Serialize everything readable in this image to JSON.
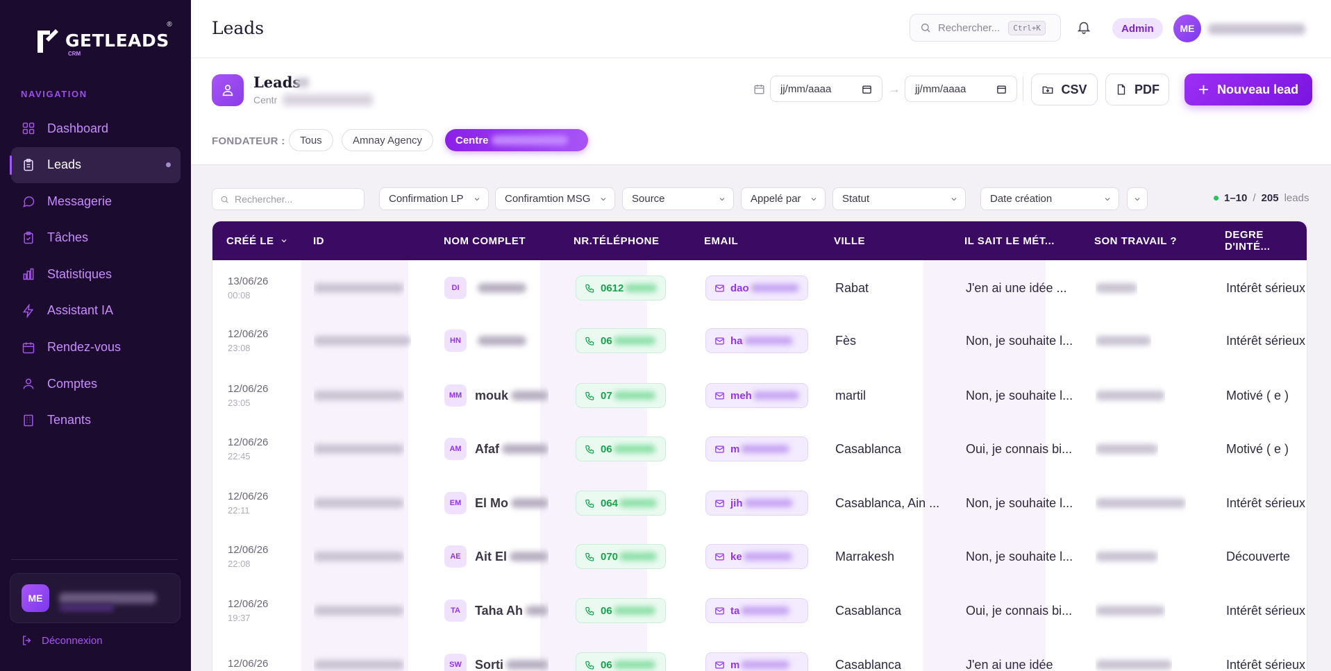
{
  "sidebar": {
    "logo_text": "GETLEADS",
    "logo_sub": "CRM",
    "nav_title": "NAVIGATION",
    "items": [
      {
        "label": "Dashboard",
        "icon": "grid-icon"
      },
      {
        "label": "Leads",
        "icon": "clipboard-icon",
        "active": true
      },
      {
        "label": "Messagerie",
        "icon": "chat-icon"
      },
      {
        "label": "Tâches",
        "icon": "task-icon"
      },
      {
        "label": "Statistiques",
        "icon": "bar-chart-icon"
      },
      {
        "label": "Assistant IA",
        "icon": "bolt-icon"
      },
      {
        "label": "Rendez-vous",
        "icon": "calendar-icon"
      },
      {
        "label": "Comptes",
        "icon": "user-icon"
      },
      {
        "label": "Tenants",
        "icon": "building-icon"
      }
    ],
    "user_initials": "ME",
    "logout": "Déconnexion"
  },
  "topbar": {
    "title": "Leads",
    "search_placeholder": "Rechercher...",
    "shortcut": "Ctrl+K",
    "role_badge": "Admin",
    "avatar_initials": "ME"
  },
  "header": {
    "title": "Leads",
    "subtitle": "Centr",
    "date_from": "jj/mm/aaaa",
    "date_to": "jj/mm/aaaa",
    "date_arrow": "→",
    "csv_label": "CSV",
    "pdf_label": "PDF",
    "new_lead_label": "Nouveau lead",
    "fondateur_label": "FONDATEUR :",
    "chips": [
      "Tous",
      "Amnay Agency",
      "Centre"
    ]
  },
  "filters": {
    "search_placeholder": "Rechercher...",
    "selects": [
      "Confirmation LP",
      "Confiramtion MSG",
      "Source",
      "Appelé par",
      "Statut",
      "Date création"
    ],
    "range": "1–10",
    "separator": "/",
    "total": "205",
    "unit": "leads"
  },
  "table": {
    "columns": [
      "CRÉÉ LE",
      "ID",
      "NOM COMPLET",
      "NR.TÉLÉPHONE",
      "EMAIL",
      "VILLE",
      "IL SAIT LE MÉT...",
      "SON TRAVAIL ?",
      "DEGRE D'INTÉ..."
    ],
    "rows": [
      {
        "date": "13/06/26",
        "time": "00:08",
        "initials": "DI",
        "name": "",
        "phone": "0612",
        "email": "dao",
        "city": "Rabat",
        "knows": "J'en ai une idée ...",
        "interest": "Intérêt sérieux"
      },
      {
        "date": "12/06/26",
        "time": "23:08",
        "initials": "HN",
        "name": "",
        "phone": "06",
        "email": "ha",
        "city": "Fès",
        "knows": "Non, je souhaite l...",
        "interest": "Intérêt sérieux"
      },
      {
        "date": "12/06/26",
        "time": "23:05",
        "initials": "MM",
        "name": "mouk",
        "phone": "07",
        "email": "meh",
        "city": "martil",
        "knows": "Non, je souhaite l...",
        "interest": "Motivé ( e )"
      },
      {
        "date": "12/06/26",
        "time": "22:45",
        "initials": "AM",
        "name": "Afaf",
        "phone": "06",
        "email": "m",
        "city": "Casablanca",
        "knows": "Oui, je connais bi...",
        "interest": "Motivé ( e )"
      },
      {
        "date": "12/06/26",
        "time": "22:11",
        "initials": "EM",
        "name": "El Mo",
        "phone": "064",
        "email": "jih",
        "city": "Casablanca, Ain ...",
        "knows": "Non, je souhaite l...",
        "interest": "Intérêt sérieux"
      },
      {
        "date": "12/06/26",
        "time": "22:08",
        "initials": "AE",
        "name": "Ait El",
        "phone": "070",
        "email": "ke",
        "city": "Marrakesh",
        "knows": "Non, je souhaite l...",
        "interest": "Découverte"
      },
      {
        "date": "12/06/26",
        "time": "19:37",
        "initials": "TA",
        "name": "Taha Ah",
        "phone": "06",
        "email": "ta",
        "city": "Casablanca",
        "knows": "Oui, je connais bi...",
        "interest": "Intérêt sérieux"
      },
      {
        "date": "12/06/26",
        "time": "",
        "initials": "SW",
        "name": "Sorti",
        "phone": "06",
        "email": "m",
        "city": "Casablanca",
        "knows": "J'en ai une idée",
        "interest": "Intérêt sérieux"
      }
    ]
  },
  "colors": {
    "accent": "#9333ea",
    "sidebar_bg": "#1b0b2e",
    "table_header": "#3b0a63",
    "phone": "#16a34a"
  }
}
